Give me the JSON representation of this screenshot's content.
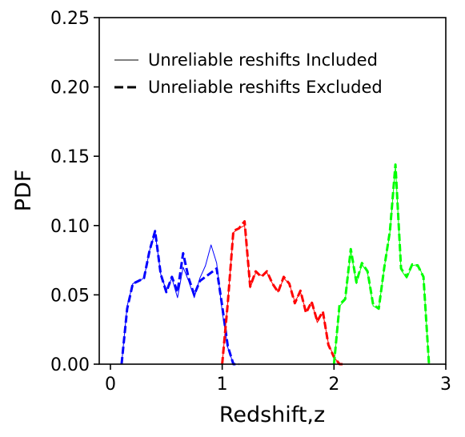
{
  "chart_data": {
    "type": "line",
    "title": "",
    "xlabel": "Redshift,z",
    "ylabel": "PDF",
    "xlim": [
      -0.1,
      3.0
    ],
    "ylim": [
      0.0,
      0.25
    ],
    "xticks": [
      0,
      1,
      2,
      3
    ],
    "yticks": [
      0.0,
      0.05,
      0.1,
      0.15,
      0.2,
      0.25
    ],
    "xtick_labels": [
      "0",
      "1",
      "2",
      "3"
    ],
    "ytick_labels": [
      "0.00",
      "0.05",
      "0.10",
      "0.15",
      "0.20",
      "0.25"
    ],
    "grid": false,
    "legend": {
      "placement": "upper-left",
      "entries": [
        {
          "label": "Unreliable reshifts Included",
          "style": "solid-thin"
        },
        {
          "label": "Unreliable reshifts Excluded",
          "style": "dashed-thick"
        }
      ]
    },
    "series": [
      {
        "style": "solid-thin",
        "color": "#0000ff",
        "x": [
          0.1,
          0.15,
          0.2,
          0.25,
          0.3,
          0.35,
          0.4,
          0.45,
          0.5,
          0.55,
          0.6,
          0.65,
          0.7,
          0.75,
          0.8,
          0.85,
          0.9,
          0.95,
          1.0,
          1.05,
          1.1,
          1.15
        ],
        "y": [
          0.0,
          0.042,
          0.058,
          0.06,
          0.062,
          0.082,
          0.095,
          0.065,
          0.053,
          0.062,
          0.048,
          0.07,
          0.06,
          0.048,
          0.062,
          0.071,
          0.086,
          0.073,
          0.038,
          0.012,
          0.0,
          0.0
        ]
      },
      {
        "style": "dashed-thick",
        "color": "#0000ff",
        "x": [
          0.1,
          0.15,
          0.2,
          0.25,
          0.3,
          0.35,
          0.4,
          0.45,
          0.5,
          0.55,
          0.6,
          0.65,
          0.7,
          0.75,
          0.8,
          0.85,
          0.9,
          0.95,
          1.0,
          1.05,
          1.1,
          1.15
        ],
        "y": [
          0.0,
          0.04,
          0.058,
          0.06,
          0.062,
          0.082,
          0.096,
          0.065,
          0.052,
          0.063,
          0.052,
          0.08,
          0.062,
          0.05,
          0.06,
          0.063,
          0.066,
          0.069,
          0.042,
          0.013,
          0.0,
          0.0
        ]
      },
      {
        "style": "solid-thin",
        "color": "#ff0000",
        "x": [
          1.0,
          1.05,
          1.1,
          1.15,
          1.2,
          1.25,
          1.3,
          1.35,
          1.4,
          1.45,
          1.5,
          1.55,
          1.6,
          1.65,
          1.7,
          1.75,
          1.8,
          1.85,
          1.9,
          1.95,
          2.0,
          2.05,
          2.1
        ],
        "y": [
          0.0,
          0.045,
          0.095,
          0.098,
          0.1,
          0.055,
          0.066,
          0.064,
          0.066,
          0.058,
          0.052,
          0.062,
          0.058,
          0.045,
          0.052,
          0.038,
          0.045,
          0.03,
          0.037,
          0.015,
          0.005,
          0.0,
          0.0
        ]
      },
      {
        "style": "dashed-thick",
        "color": "#ff0000",
        "x": [
          1.0,
          1.05,
          1.1,
          1.15,
          1.2,
          1.25,
          1.3,
          1.35,
          1.4,
          1.45,
          1.5,
          1.55,
          1.6,
          1.65,
          1.7,
          1.75,
          1.8,
          1.85,
          1.9,
          1.95,
          2.0,
          2.05,
          2.1
        ],
        "y": [
          0.0,
          0.044,
          0.096,
          0.098,
          0.103,
          0.056,
          0.067,
          0.063,
          0.067,
          0.058,
          0.052,
          0.063,
          0.058,
          0.044,
          0.053,
          0.037,
          0.045,
          0.031,
          0.038,
          0.014,
          0.005,
          0.0,
          0.0
        ]
      },
      {
        "style": "solid-thin",
        "color": "#00ff00",
        "x": [
          2.0,
          2.05,
          2.1,
          2.15,
          2.2,
          2.25,
          2.3,
          2.35,
          2.4,
          2.45,
          2.5,
          2.55,
          2.6,
          2.65,
          2.7,
          2.75,
          2.8,
          2.85
        ],
        "y": [
          0.0,
          0.042,
          0.046,
          0.082,
          0.058,
          0.072,
          0.066,
          0.042,
          0.04,
          0.07,
          0.095,
          0.143,
          0.068,
          0.062,
          0.071,
          0.072,
          0.063,
          0.0
        ],
        "x_extra_note": ""
      },
      {
        "style": "dashed-thick",
        "color": "#00ff00",
        "x": [
          2.0,
          2.05,
          2.1,
          2.15,
          2.2,
          2.25,
          2.3,
          2.35,
          2.4,
          2.45,
          2.5,
          2.55,
          2.6,
          2.65,
          2.7,
          2.75,
          2.8,
          2.85
        ],
        "y": [
          0.0,
          0.043,
          0.047,
          0.083,
          0.059,
          0.073,
          0.067,
          0.043,
          0.04,
          0.07,
          0.096,
          0.144,
          0.069,
          0.063,
          0.072,
          0.071,
          0.063,
          0.0
        ]
      }
    ]
  }
}
